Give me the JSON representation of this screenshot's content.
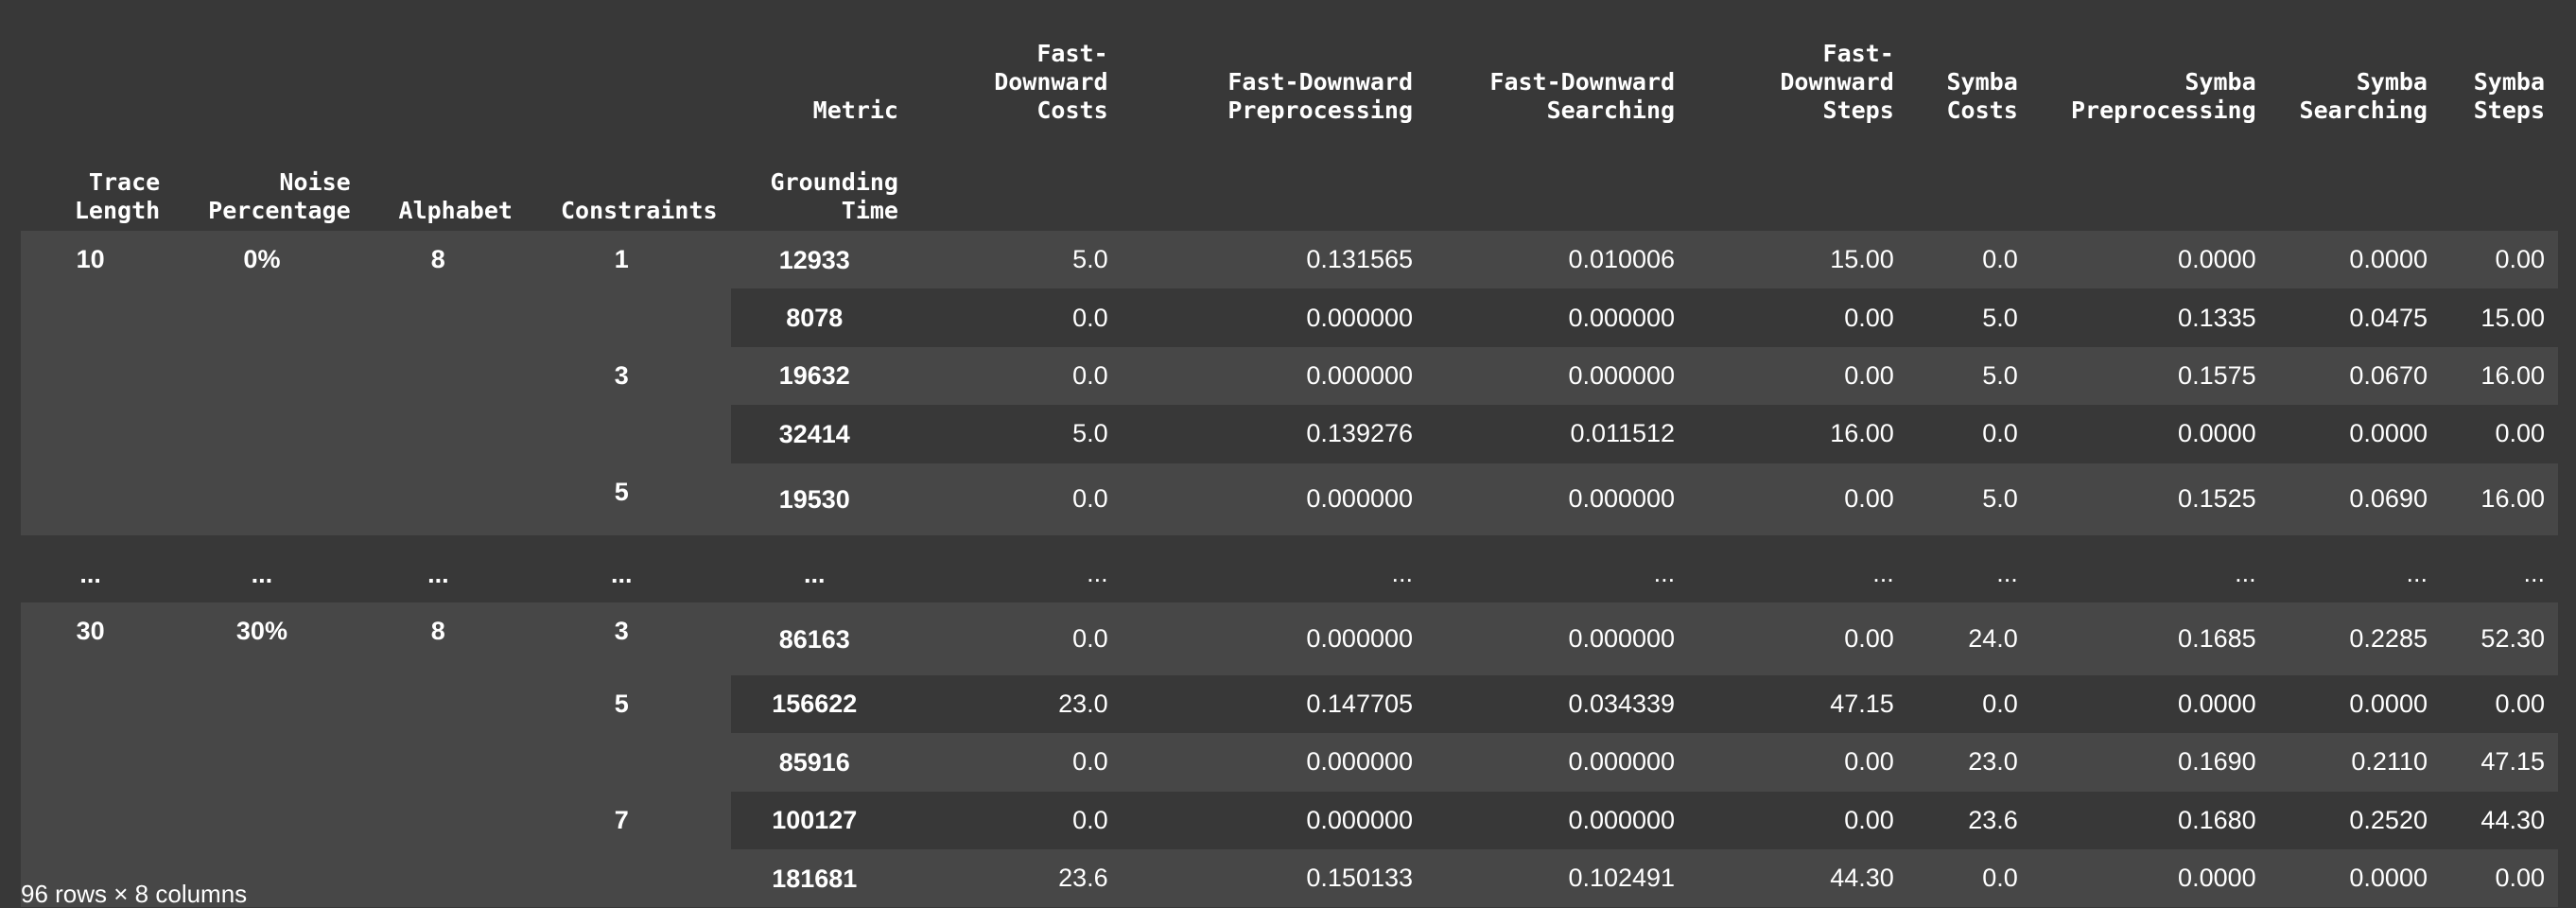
{
  "header": {
    "metric_label": "Metric",
    "columns": [
      [
        "Fast-",
        "Downward",
        "Costs"
      ],
      [
        "Fast-Downward",
        "Preprocessing"
      ],
      [
        "Fast-Downward",
        "Searching"
      ],
      [
        "Fast-",
        "Downward",
        "Steps"
      ],
      [
        "Symba",
        "Costs"
      ],
      [
        "Symba",
        "Preprocessing"
      ],
      [
        "Symba",
        "Searching"
      ],
      [
        "Symba",
        "Steps"
      ]
    ],
    "index_names": [
      [
        "Trace",
        "Length"
      ],
      [
        "Noise",
        "Percentage"
      ],
      [
        "Alphabet"
      ],
      [
        "Constraints"
      ],
      [
        "Grounding",
        "Time"
      ]
    ]
  },
  "groups_top": {
    "trace_length": "10",
    "noise": "0%",
    "alphabet": "8",
    "constraints": [
      "1",
      "3",
      "5"
    ]
  },
  "groups_bottom": {
    "trace_length": "30",
    "noise": "30%",
    "alphabet": "8",
    "constraints": [
      "3",
      "5",
      "7"
    ]
  },
  "rows_top": [
    {
      "grounding": "12933",
      "values": [
        "5.0",
        "0.131565",
        "0.010006",
        "15.00",
        "0.0",
        "0.0000",
        "0.0000",
        "0.00"
      ]
    },
    {
      "grounding": "8078",
      "values": [
        "0.0",
        "0.000000",
        "0.000000",
        "0.00",
        "5.0",
        "0.1335",
        "0.0475",
        "15.00"
      ]
    },
    {
      "grounding": "19632",
      "values": [
        "0.0",
        "0.000000",
        "0.000000",
        "0.00",
        "5.0",
        "0.1575",
        "0.0670",
        "16.00"
      ]
    },
    {
      "grounding": "32414",
      "values": [
        "5.0",
        "0.139276",
        "0.011512",
        "16.00",
        "0.0",
        "0.0000",
        "0.0000",
        "0.00"
      ]
    },
    {
      "grounding": "19530",
      "values": [
        "0.0",
        "0.000000",
        "0.000000",
        "0.00",
        "5.0",
        "0.1525",
        "0.0690",
        "16.00"
      ]
    }
  ],
  "ellipsis": "...",
  "rows_bottom": [
    {
      "grounding": "86163",
      "values": [
        "0.0",
        "0.000000",
        "0.000000",
        "0.00",
        "24.0",
        "0.1685",
        "0.2285",
        "52.30"
      ]
    },
    {
      "grounding": "156622",
      "values": [
        "23.0",
        "0.147705",
        "0.034339",
        "47.15",
        "0.0",
        "0.0000",
        "0.0000",
        "0.00"
      ]
    },
    {
      "grounding": "85916",
      "values": [
        "0.0",
        "0.000000",
        "0.000000",
        "0.00",
        "23.0",
        "0.1690",
        "0.2110",
        "47.15"
      ]
    },
    {
      "grounding": "100127",
      "values": [
        "0.0",
        "0.000000",
        "0.000000",
        "0.00",
        "23.6",
        "0.1680",
        "0.2520",
        "44.30"
      ]
    },
    {
      "grounding": "181681",
      "values": [
        "23.6",
        "0.150133",
        "0.102491",
        "44.30",
        "0.0",
        "0.0000",
        "0.0000",
        "0.00"
      ]
    }
  ],
  "footer": "96 rows × 8 columns"
}
